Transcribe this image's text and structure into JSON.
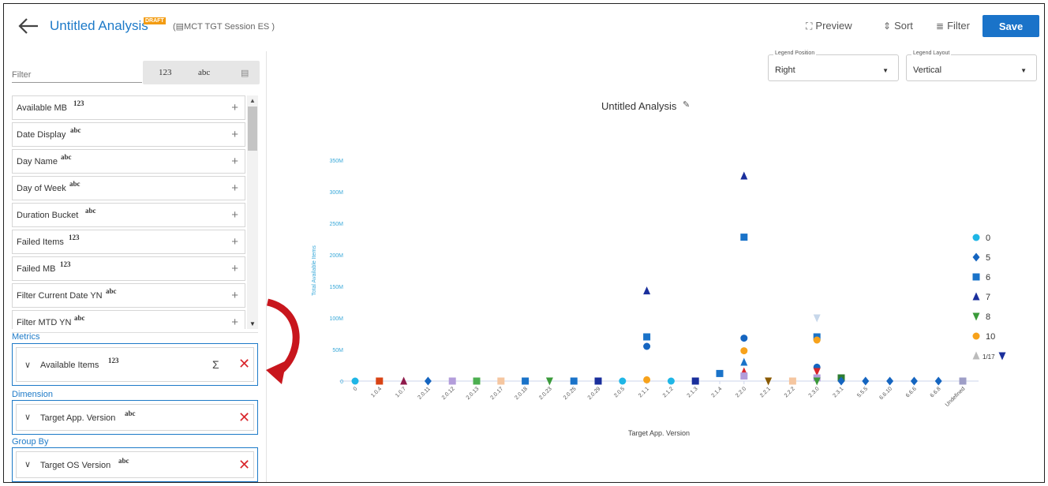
{
  "header": {
    "title": "Untitled Analysis",
    "draft_badge": "DRAFT",
    "session": "(▤MCT TGT Session ES )",
    "preview_label": "Preview",
    "sort_label": "Sort",
    "filter_label": "Filter",
    "save_label": "Save"
  },
  "left": {
    "filter_placeholder": "Filter",
    "type_toggle": [
      "123",
      "abc",
      "▤"
    ],
    "fields": [
      {
        "name": "Available MB",
        "type": "123"
      },
      {
        "name": "Date Display",
        "type": "abc"
      },
      {
        "name": "Day Name",
        "type": "abc"
      },
      {
        "name": "Day of Week",
        "type": "abc"
      },
      {
        "name": "Duration Bucket",
        "type": "abc"
      },
      {
        "name": "Failed Items",
        "type": "123"
      },
      {
        "name": "Failed MB",
        "type": "123"
      },
      {
        "name": "Filter Current Date YN",
        "type": "abc"
      },
      {
        "name": "Filter MTD YN",
        "type": "abc"
      }
    ],
    "metrics_label": "Metrics",
    "metric": {
      "name": "Available Items",
      "type": "123",
      "sigma": "Σ"
    },
    "dimension_label": "Dimension",
    "dimension": {
      "name": "Target App. Version",
      "type": "abc"
    },
    "groupby_label": "Group By",
    "groupby": {
      "name": "Target OS Version",
      "type": "abc"
    }
  },
  "controls": {
    "legend_position_label": "Legend Position",
    "legend_position_value": "Right",
    "legend_layout_label": "Legend Layout",
    "legend_layout_value": "Vertical"
  },
  "chart_data": {
    "type": "scatter",
    "title": "Untitled Analysis",
    "xlabel": "Target App. Version",
    "ylabel": "Total Available Items",
    "ylim": [
      0,
      350000000
    ],
    "yticks": [
      "0",
      "50M",
      "100M",
      "150M",
      "200M",
      "250M",
      "300M",
      "350M"
    ],
    "categories": [
      "0",
      "1.0.4",
      "1.0.7",
      "2.0.11",
      "2.0.12",
      "2.0.13",
      "2.0.17",
      "2.0.18",
      "2.0.23",
      "2.0.25",
      "2.0.29",
      "2.0.5",
      "2.1.1",
      "2.1.2",
      "2.1.3",
      "2.1.4",
      "2.2.0",
      "2.2.1",
      "2.2.2",
      "2.3.0",
      "2.3.1",
      "5.5.5",
      "6.6.10",
      "6.6.6",
      "6.6.8",
      "Undefined"
    ],
    "legend_page": "1/17",
    "series": [
      {
        "name": "0",
        "color": "#1fb6e6",
        "marker": "circle",
        "points": [
          [
            "0",
            0
          ],
          [
            "2.0.5",
            0
          ],
          [
            "2.1.2",
            0
          ]
        ]
      },
      {
        "name": "5",
        "color": "#1565c0",
        "marker": "diamond",
        "points": [
          [
            "2.0.11",
            0
          ],
          [
            "2.3.1",
            0
          ],
          [
            "5.5.5",
            0
          ],
          [
            "6.6.10",
            0
          ],
          [
            "6.6.6",
            0
          ],
          [
            "6.6.8",
            0
          ]
        ]
      },
      {
        "name": "6",
        "color": "#1a73c9",
        "marker": "square",
        "points": [
          [
            "2.0.18",
            0
          ],
          [
            "2.0.25",
            0
          ],
          [
            "2.1.1",
            70000000
          ],
          [
            "2.1.4",
            12000000
          ],
          [
            "2.2.0",
            228000000
          ],
          [
            "2.3.0",
            70000000
          ]
        ]
      },
      {
        "name": "7",
        "color": "#1a2f9c",
        "marker": "triangle",
        "points": [
          [
            "2.1.1",
            143000000
          ],
          [
            "2.2.0",
            325000000
          ]
        ]
      },
      {
        "name": "8",
        "color": "#3a9a3a",
        "marker": "triangle-down",
        "points": [
          [
            "2.0.23",
            0
          ],
          [
            "2.3.0",
            0
          ]
        ]
      },
      {
        "name": "10",
        "color": "#f7a21b",
        "marker": "circle",
        "points": [
          [
            "2.1.1",
            2000000
          ],
          [
            "2.2.0",
            48000000
          ],
          [
            "2.3.0",
            65000000
          ]
        ]
      }
    ],
    "extra_points": [
      {
        "x": "1.0.4",
        "y": 0,
        "color": "#d84315",
        "marker": "square"
      },
      {
        "x": "1.0.7",
        "y": 0,
        "color": "#8e1a4a",
        "marker": "triangle"
      },
      {
        "x": "2.0.12",
        "y": 0,
        "color": "#b39ddb",
        "marker": "square"
      },
      {
        "x": "2.0.13",
        "y": 0,
        "color": "#4caf50",
        "marker": "square"
      },
      {
        "x": "2.0.17",
        "y": 0,
        "color": "#f5c6a0",
        "marker": "square"
      },
      {
        "x": "2.0.29",
        "y": 0,
        "color": "#1a2f9c",
        "marker": "square"
      },
      {
        "x": "2.1.1",
        "y": 55000000,
        "color": "#1565c0",
        "marker": "circle"
      },
      {
        "x": "2.1.3",
        "y": 0,
        "color": "#1a2f9c",
        "marker": "square"
      },
      {
        "x": "2.2.0",
        "y": 68000000,
        "color": "#1565c0",
        "marker": "circle"
      },
      {
        "x": "2.2.0",
        "y": 30000000,
        "color": "#1a73c9",
        "marker": "triangle"
      },
      {
        "x": "2.2.0",
        "y": 15000000,
        "color": "#d9262c",
        "marker": "triangle"
      },
      {
        "x": "2.2.0",
        "y": 8000000,
        "color": "#b39ddb",
        "marker": "square"
      },
      {
        "x": "2.2.1",
        "y": 0,
        "color": "#8a5a00",
        "marker": "triangle-down"
      },
      {
        "x": "2.2.2",
        "y": 0,
        "color": "#f5c6a0",
        "marker": "square"
      },
      {
        "x": "2.3.0",
        "y": 100000000,
        "color": "#c7d7ea",
        "marker": "triangle-down"
      },
      {
        "x": "2.3.0",
        "y": 22000000,
        "color": "#1565c0",
        "marker": "circle"
      },
      {
        "x": "2.3.0",
        "y": 15000000,
        "color": "#d9262c",
        "marker": "triangle-down"
      },
      {
        "x": "2.3.0",
        "y": 5000000,
        "color": "#b39ddb",
        "marker": "square"
      },
      {
        "x": "2.3.1",
        "y": 5000000,
        "color": "#2e7d32",
        "marker": "square"
      },
      {
        "x": "Undefined",
        "y": 0,
        "color": "#9e9ec7",
        "marker": "square"
      }
    ]
  }
}
